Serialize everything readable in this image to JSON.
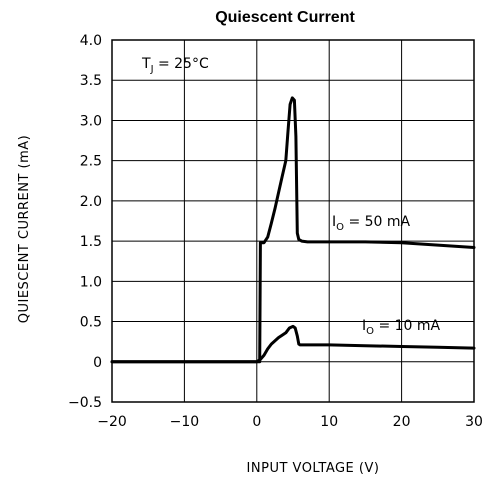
{
  "chart_data": {
    "type": "line",
    "title": "Quiescent Current",
    "xlabel": "INPUT VOLTAGE (V)",
    "ylabel": "QUIESCENT CURRENT (mA)",
    "xlim": [
      -20,
      30
    ],
    "ylim": [
      -0.5,
      4.0
    ],
    "x_ticks": [
      -20,
      -10,
      0,
      10,
      20,
      30
    ],
    "x_tick_labels": [
      "−20",
      "−10",
      "0",
      "10",
      "20",
      "30"
    ],
    "y_ticks": [
      4.0,
      3.5,
      3.0,
      2.5,
      2.0,
      1.5,
      1.0,
      0.5,
      0,
      -0.5
    ],
    "y_tick_labels": [
      "4.0",
      "3.5",
      "3.0",
      "2.5",
      "2.0",
      "1.5",
      "1.0",
      "0.5",
      "0",
      "−0.5"
    ],
    "grid": true,
    "condition": {
      "main": "T",
      "sub": "J",
      "rest": " = 25°C"
    },
    "series": [
      {
        "label_main": "I",
        "label_sub": "O",
        "label_rest": " = 50 mA",
        "x": [
          -20,
          0,
          0.4,
          0.5,
          1.0,
          1.5,
          2.0,
          2.5,
          3.0,
          3.5,
          4.0,
          4.3,
          4.6,
          4.9,
          5.2,
          5.4,
          5.6,
          5.8,
          6.2,
          7.0,
          10,
          15,
          20,
          25,
          30
        ],
        "y": [
          0,
          0,
          0,
          1.48,
          1.48,
          1.55,
          1.72,
          1.9,
          2.1,
          2.3,
          2.5,
          2.85,
          3.2,
          3.28,
          3.25,
          2.8,
          1.6,
          1.52,
          1.5,
          1.49,
          1.49,
          1.49,
          1.48,
          1.45,
          1.42
        ]
      },
      {
        "label_main": "I",
        "label_sub": "O",
        "label_rest": " = 10 mA",
        "x": [
          -20,
          0,
          0.5,
          1.0,
          1.5,
          2.0,
          2.5,
          3.0,
          3.5,
          4.0,
          4.5,
          5.0,
          5.3,
          5.6,
          5.8,
          6.0,
          7.0,
          10,
          15,
          20,
          25,
          30
        ],
        "y": [
          0,
          0,
          0.03,
          0.08,
          0.16,
          0.22,
          0.26,
          0.3,
          0.33,
          0.36,
          0.42,
          0.44,
          0.42,
          0.32,
          0.22,
          0.21,
          0.21,
          0.21,
          0.2,
          0.19,
          0.18,
          0.17
        ]
      }
    ]
  }
}
